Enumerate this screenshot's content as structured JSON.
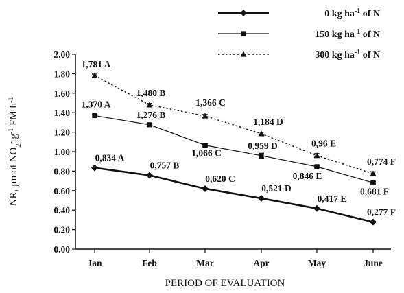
{
  "chart_data": {
    "type": "line",
    "categories": [
      "Jan",
      "Feb",
      "Mar",
      "Apr",
      "May",
      "June"
    ],
    "xlabel": "PERIOD OF EVALUATION",
    "ylabel": {
      "prefix": "NR, µmol NO",
      "sub": "2",
      "sup1": "-",
      "mid": " g",
      "sup2": "-1",
      "mid2": " FM h",
      "sup3": "-1"
    },
    "ylim": [
      0,
      2.0
    ],
    "yticks": [
      "0.00",
      "0.20",
      "0.40",
      "0.60",
      "0.80",
      "1.00",
      "1.20",
      "1.40",
      "1.60",
      "1.80",
      "2.00"
    ],
    "legend_position": "top-right",
    "series": [
      {
        "name": "0 kg ha-1 of N",
        "legend": {
          "main": "0 kg ha",
          "sup": "-1",
          "rest": " of N"
        },
        "style": "thick-solid",
        "marker": "diamond",
        "values": [
          0.834,
          0.757,
          0.62,
          0.521,
          0.417,
          0.277
        ],
        "errors": [
          0,
          0,
          0,
          0,
          0,
          0
        ],
        "labels": [
          "0,834 A",
          "0,757 B",
          "0,620 C",
          "0,521 D",
          "0,417 E",
          "0,277 F"
        ]
      },
      {
        "name": "150 kg ha-1 of N",
        "legend": {
          "main": "150 kg ha",
          "sup": "-1",
          "rest": " of N"
        },
        "style": "solid",
        "marker": "square",
        "values": [
          1.37,
          1.276,
          1.066,
          0.959,
          0.846,
          0.681
        ],
        "errors": [
          0.015,
          0.015,
          0.015,
          0.025,
          0.01,
          0.012
        ],
        "labels": [
          "1,370 A",
          "1,276 B",
          "1,066 C",
          "0,959 D",
          "0,846 E",
          "0,681 F"
        ]
      },
      {
        "name": "300 kg ha-1 of N",
        "legend": {
          "main": "300 kg ha",
          "sup": "-1",
          "rest": " of N"
        },
        "style": "dotted",
        "marker": "triangle",
        "values": [
          1.781,
          1.48,
          1.366,
          1.184,
          0.96,
          0.774
        ],
        "errors": [
          0.015,
          0.015,
          0.015,
          0.015,
          0.02,
          0.02
        ],
        "labels": [
          "1,781 A",
          "1,480 B",
          "1,366 C",
          "1,184 D",
          "0,96 E",
          "0,774 F"
        ]
      }
    ]
  }
}
